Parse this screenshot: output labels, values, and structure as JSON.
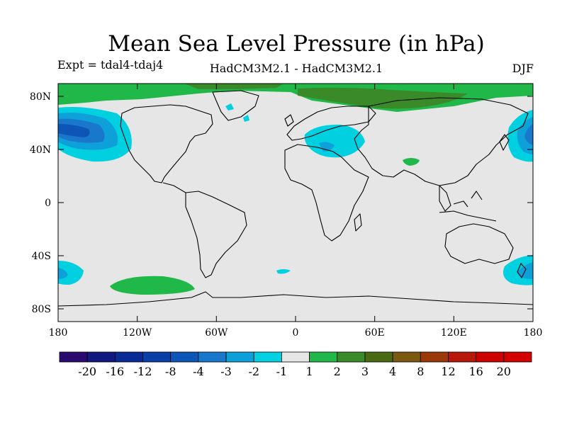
{
  "header": {
    "title": "Mean Sea Level Pressure (in hPa)",
    "experiment": "Expt = tdal4-tdaj4",
    "models": "HadCM3M2.1 - HadCM3M2.1",
    "season": "DJF"
  },
  "map": {
    "lat_ticks": [
      "80N",
      "40N",
      "0",
      "40S",
      "80S"
    ],
    "lon_ticks": [
      "180",
      "120W",
      "60W",
      "0",
      "60E",
      "120E",
      "180"
    ],
    "colors": {
      "background": "#e6e6e6",
      "coast": "#000000",
      "cyan": "#00d4e0",
      "light_blue": "#00aee6",
      "blue": "#0080d8",
      "deep_blue": "#0050b8",
      "green": "#20b848",
      "dark_green": "#3a8a2a",
      "olive": "#4a7a18"
    }
  },
  "colorbar": {
    "labels": [
      "-20",
      "-16",
      "-12",
      "-8",
      "-4",
      "-3",
      "-2",
      "-1",
      "1",
      "2",
      "3",
      "4",
      "8",
      "12",
      "16",
      "20"
    ],
    "colors": [
      "#2a0a6e",
      "#101a80",
      "#0a2a96",
      "#0a3ea8",
      "#0d56b8",
      "#1a78cc",
      "#0ea0d8",
      "#00d0e0",
      "#e6e6e6",
      "#20b848",
      "#3a8a2a",
      "#4a6a14",
      "#7a5a10",
      "#9a3a0a",
      "#b8180a",
      "#cc0000",
      "#d40000"
    ]
  }
}
